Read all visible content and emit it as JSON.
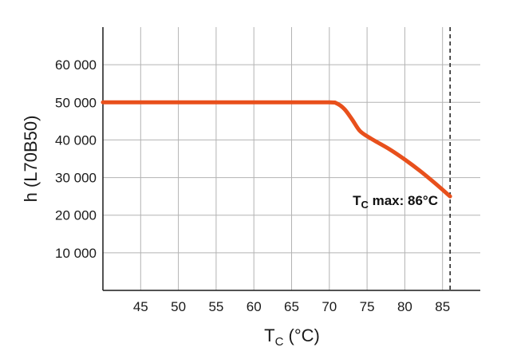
{
  "chart_data": {
    "type": "line",
    "title": "",
    "xlabel": "T",
    "xlabel_subscript": "C",
    "xlabel_unit": " (°C)",
    "ylabel": "h (L70B50)",
    "xlim": [
      40,
      90
    ],
    "ylim": [
      0,
      70000
    ],
    "xticks": [
      45,
      50,
      55,
      60,
      65,
      70,
      75,
      80,
      85
    ],
    "xtick_labels": [
      "45",
      "50",
      "55",
      "60",
      "65",
      "70",
      "75",
      "80",
      "85"
    ],
    "yticks": [
      10000,
      20000,
      30000,
      40000,
      50000,
      60000
    ],
    "ytick_labels": [
      "10 000",
      "20 000",
      "30 000",
      "40 000",
      "50 000",
      "60 000"
    ],
    "grid": true,
    "series": [
      {
        "color": "#e8501c",
        "x": [
          40,
          45,
          50,
          55,
          60,
          65,
          70,
          71,
          72,
          73,
          74,
          75,
          76,
          78,
          80,
          82,
          84,
          86
        ],
        "y": [
          50000,
          50000,
          50000,
          50000,
          50000,
          50000,
          50000,
          49700,
          48200,
          45500,
          42500,
          41000,
          39800,
          37500,
          34800,
          31800,
          28500,
          25000
        ]
      }
    ],
    "tc_max": 86,
    "annotation": {
      "prefix": "T",
      "subscript": "C",
      "text": " max: 86°C"
    }
  }
}
